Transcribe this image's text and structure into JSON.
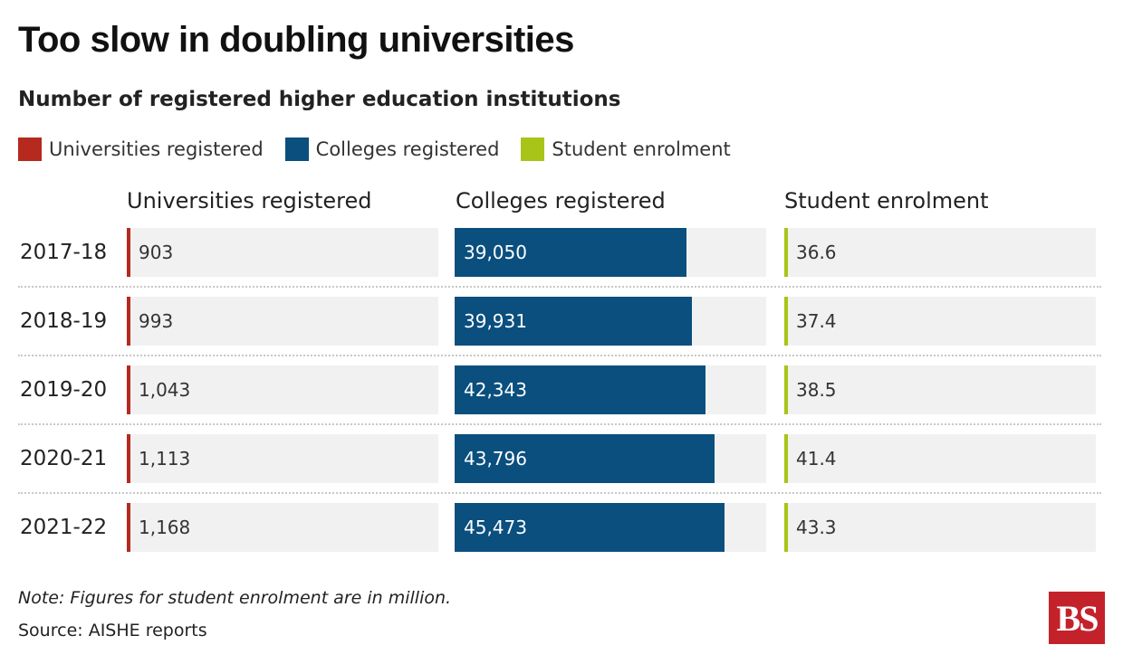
{
  "title": "Too slow in doubling universities",
  "subtitle": "Number of registered higher education institutions",
  "legend": [
    {
      "label": "Universities registered",
      "color": "#b5291e"
    },
    {
      "label": "Colleges registered",
      "color": "#0a4f7e"
    },
    {
      "label": "Student enrolment",
      "color": "#a9c418"
    }
  ],
  "columns": [
    "Universities registered",
    "Colleges registered",
    "Student enrolment"
  ],
  "note": "Note: Figures for student enrolment are in million.",
  "source": "Source: AISHE reports",
  "logo": "BS",
  "chart_data": {
    "type": "bar",
    "categories": [
      "2017-18",
      "2018-19",
      "2019-20",
      "2020-21",
      "2021-22"
    ],
    "series": [
      {
        "name": "Universities registered",
        "values": [
          903,
          993,
          1043,
          1113,
          1168
        ],
        "labels": [
          "903",
          "993",
          "1,043",
          "1,113",
          "1,168"
        ],
        "color": "#b5291e",
        "max": 45473
      },
      {
        "name": "Colleges registered",
        "values": [
          39050,
          39931,
          42343,
          43796,
          45473
        ],
        "labels": [
          "39,050",
          "39,931",
          "42,343",
          "43,796",
          "45,473"
        ],
        "color": "#0a4f7e",
        "max": 52500
      },
      {
        "name": "Student enrolment",
        "values": [
          36.6,
          37.4,
          38.5,
          41.4,
          43.3
        ],
        "labels": [
          "36.6",
          "37.4",
          "38.5",
          "41.4",
          "43.3"
        ],
        "color": "#a9c418",
        "max": 43.3
      }
    ]
  }
}
